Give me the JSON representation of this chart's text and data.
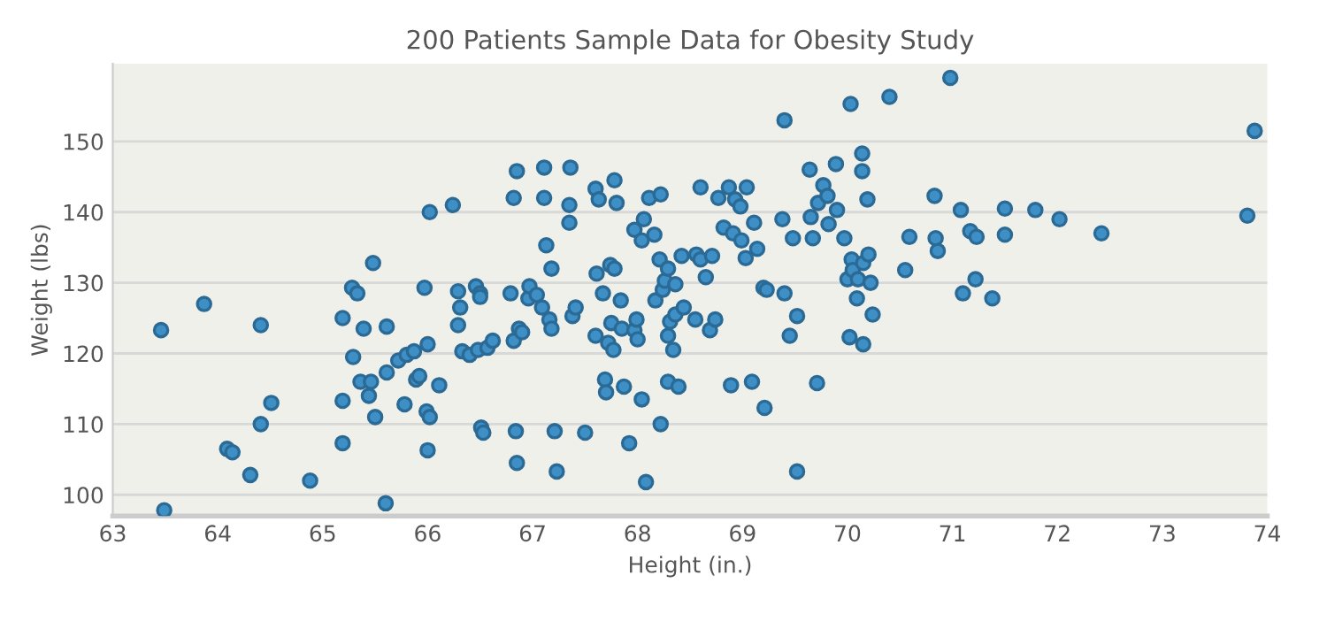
{
  "chart_data": {
    "type": "scatter",
    "title": "200 Patients Sample Data for Obesity Study",
    "xlabel": "Height (in.)",
    "ylabel": "Weight (lbs)",
    "xlim": [
      63,
      74
    ],
    "ylim": [
      97,
      161
    ],
    "xticks": [
      63,
      64,
      65,
      66,
      67,
      68,
      69,
      70,
      71,
      72,
      73,
      74
    ],
    "yticks": [
      100,
      110,
      120,
      130,
      140,
      150
    ],
    "grid": "y",
    "marker": "circle",
    "series": [
      {
        "color": "#3d8fc6",
        "x": [
          63.46,
          63.49,
          63.87,
          64.09,
          64.14,
          64.31,
          64.41,
          64.41,
          64.51,
          64.88,
          65.19,
          65.19,
          65.19,
          65.28,
          65.33,
          65.29,
          65.36,
          65.39,
          65.44,
          65.46,
          65.48,
          65.5,
          65.6,
          65.61,
          65.61,
          65.72,
          65.78,
          65.8,
          65.87,
          65.89,
          65.92,
          65.97,
          65.99,
          66.0,
          66.0,
          66.02,
          66.02,
          66.11,
          66.24,
          66.29,
          66.29,
          66.31,
          66.33,
          66.4,
          66.46,
          66.5,
          66.48,
          66.51,
          66.53,
          66.5,
          66.57,
          66.62,
          66.79,
          66.82,
          66.85,
          66.82,
          66.84,
          66.85,
          66.87,
          66.9,
          66.96,
          66.97,
          67.04,
          67.11,
          67.09,
          67.11,
          67.13,
          67.18,
          67.16,
          67.18,
          67.21,
          67.23,
          67.36,
          67.35,
          67.35,
          67.38,
          67.41,
          67.5,
          67.6,
          67.61,
          67.6,
          67.63,
          67.67,
          67.69,
          67.7,
          67.74,
          67.72,
          67.77,
          67.78,
          67.78,
          67.75,
          67.8,
          67.84,
          67.85,
          67.87,
          67.92,
          67.97,
          67.97,
          67.99,
          68.0,
          68.04,
          68.06,
          68.08,
          68.04,
          68.11,
          68.16,
          68.17,
          68.22,
          68.21,
          68.22,
          68.24,
          68.26,
          68.29,
          68.29,
          68.31,
          68.29,
          68.34,
          68.36,
          68.39,
          68.36,
          68.42,
          68.44,
          68.56,
          68.55,
          68.6,
          68.6,
          68.65,
          68.69,
          68.71,
          68.74,
          68.77,
          68.82,
          68.87,
          68.89,
          68.93,
          68.91,
          68.98,
          68.99,
          69.03,
          69.04,
          69.09,
          69.11,
          69.14,
          69.2,
          69.21,
          69.23,
          69.38,
          69.4,
          69.4,
          69.45,
          69.48,
          69.52,
          69.52,
          69.64,
          69.65,
          69.67,
          69.71,
          69.72,
          69.77,
          69.81,
          69.82,
          69.89,
          69.9,
          69.97,
          70.0,
          70.02,
          70.03,
          70.04,
          70.05,
          70.09,
          70.1,
          70.14,
          70.14,
          70.15,
          70.15,
          70.19,
          70.2,
          70.22,
          70.24,
          70.4,
          70.55,
          70.59,
          70.83,
          70.84,
          70.86,
          70.98,
          71.08,
          71.1,
          71.17,
          71.22,
          71.23,
          71.38,
          71.5,
          71.5,
          71.79,
          72.02,
          72.42,
          73.81,
          73.88
        ],
        "values": [
          123.3,
          97.8,
          127,
          106.5,
          106,
          102.8,
          124,
          110,
          113,
          102,
          113.3,
          125,
          107.3,
          129.3,
          128.5,
          119.5,
          116,
          123.5,
          114,
          116,
          132.8,
          111,
          98.8,
          123.8,
          117.3,
          119,
          112.8,
          119.8,
          120.3,
          116.3,
          116.8,
          129.3,
          111.8,
          121.3,
          106.3,
          111,
          140,
          115.5,
          141,
          128.8,
          124,
          126.5,
          120.3,
          119.8,
          129.5,
          128.5,
          120.5,
          109.5,
          108.8,
          128,
          120.8,
          121.8,
          128.5,
          121.8,
          145.8,
          142,
          109,
          104.5,
          123.5,
          123,
          127.8,
          129.5,
          128.3,
          146.3,
          126.5,
          142,
          135.3,
          132,
          124.8,
          123.5,
          109,
          103.3,
          146.3,
          141,
          138.5,
          125.3,
          126.5,
          108.8,
          143.3,
          131.3,
          122.5,
          141.8,
          128.5,
          116.3,
          114.5,
          132.5,
          121.5,
          120.5,
          144.5,
          132,
          124.3,
          141.3,
          127.5,
          123.5,
          115.3,
          107.3,
          137.5,
          123.3,
          124.8,
          122,
          136,
          139,
          101.8,
          113.5,
          142,
          136.8,
          127.5,
          142.5,
          133.3,
          110,
          129,
          130.3,
          132,
          122.5,
          124.5,
          116,
          120.5,
          129.8,
          115.3,
          125.5,
          133.8,
          126.5,
          134,
          124.8,
          133.3,
          143.5,
          130.8,
          123.3,
          133.8,
          124.8,
          142,
          137.8,
          143.5,
          115.5,
          141.8,
          137,
          140.8,
          136,
          133.5,
          143.5,
          116,
          138.5,
          134.8,
          129.3,
          112.3,
          129,
          139,
          153,
          128.5,
          122.5,
          136.3,
          103.3,
          125.3,
          146,
          139.3,
          136.3,
          115.8,
          141.3,
          143.8,
          142.3,
          138.3,
          146.8,
          140.3,
          136.3,
          130.5,
          122.3,
          155.3,
          133.3,
          131.8,
          127.8,
          130.5,
          148.3,
          145.8,
          132.8,
          121.3,
          141.8,
          134,
          130,
          125.5,
          156.3,
          131.8,
          136.5,
          142.3,
          136.3,
          134.5,
          159,
          140.3,
          128.5,
          137.3,
          130.5,
          136.5,
          127.8,
          140.5,
          136.8,
          140.3,
          139,
          137,
          139.5,
          151.5
        ]
      }
    ]
  }
}
